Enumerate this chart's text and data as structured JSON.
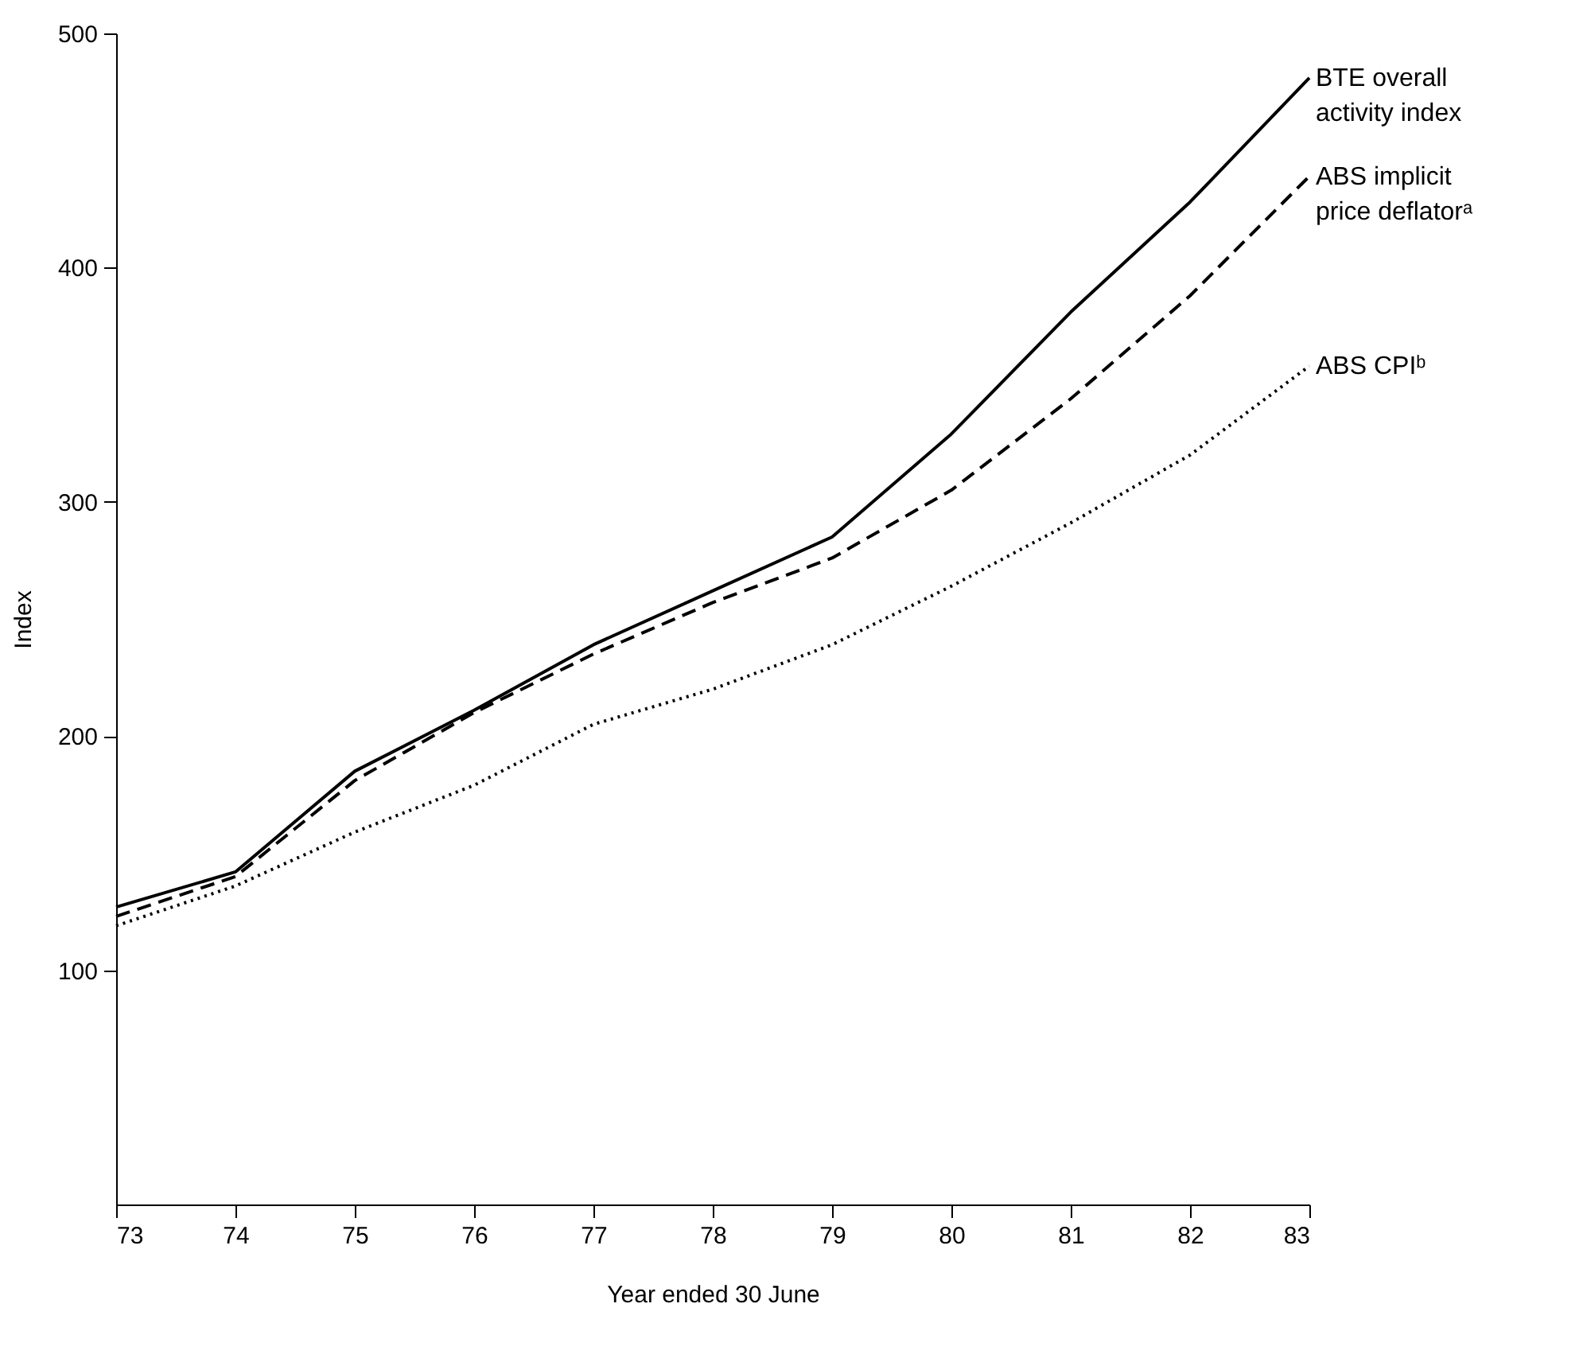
{
  "chart_data": {
    "type": "line",
    "xlabel": "Year ended 30 June",
    "ylabel": "Index",
    "x": [
      73,
      74,
      75,
      76,
      77,
      78,
      79,
      80,
      81,
      82,
      83
    ],
    "series": [
      {
        "name": "BTE overall activity index",
        "color": "#000000",
        "line_style": "solid",
        "values": [
          127,
          142,
          185,
          211,
          239,
          262,
          285,
          329,
          381,
          428,
          481
        ]
      },
      {
        "name": "ABS implicit price deflatorᵃ",
        "color": "#000000",
        "line_style": "dashed",
        "values": [
          123,
          140,
          181,
          210,
          235,
          257,
          276,
          305,
          344,
          388,
          439
        ]
      },
      {
        "name": "ABS CPIᵇ",
        "color": "#000000",
        "line_style": "dotted",
        "values": [
          119,
          136,
          159,
          179,
          205,
          220,
          239,
          264,
          291,
          320,
          358
        ]
      }
    ],
    "xlim": [
      73,
      83
    ],
    "xticks": [
      73,
      74,
      75,
      76,
      77,
      78,
      79,
      80,
      81,
      82,
      83
    ],
    "ylim": [
      0,
      500
    ],
    "yticks": [
      100,
      200,
      300,
      400,
      500
    ],
    "grid": false,
    "marker": "none"
  }
}
